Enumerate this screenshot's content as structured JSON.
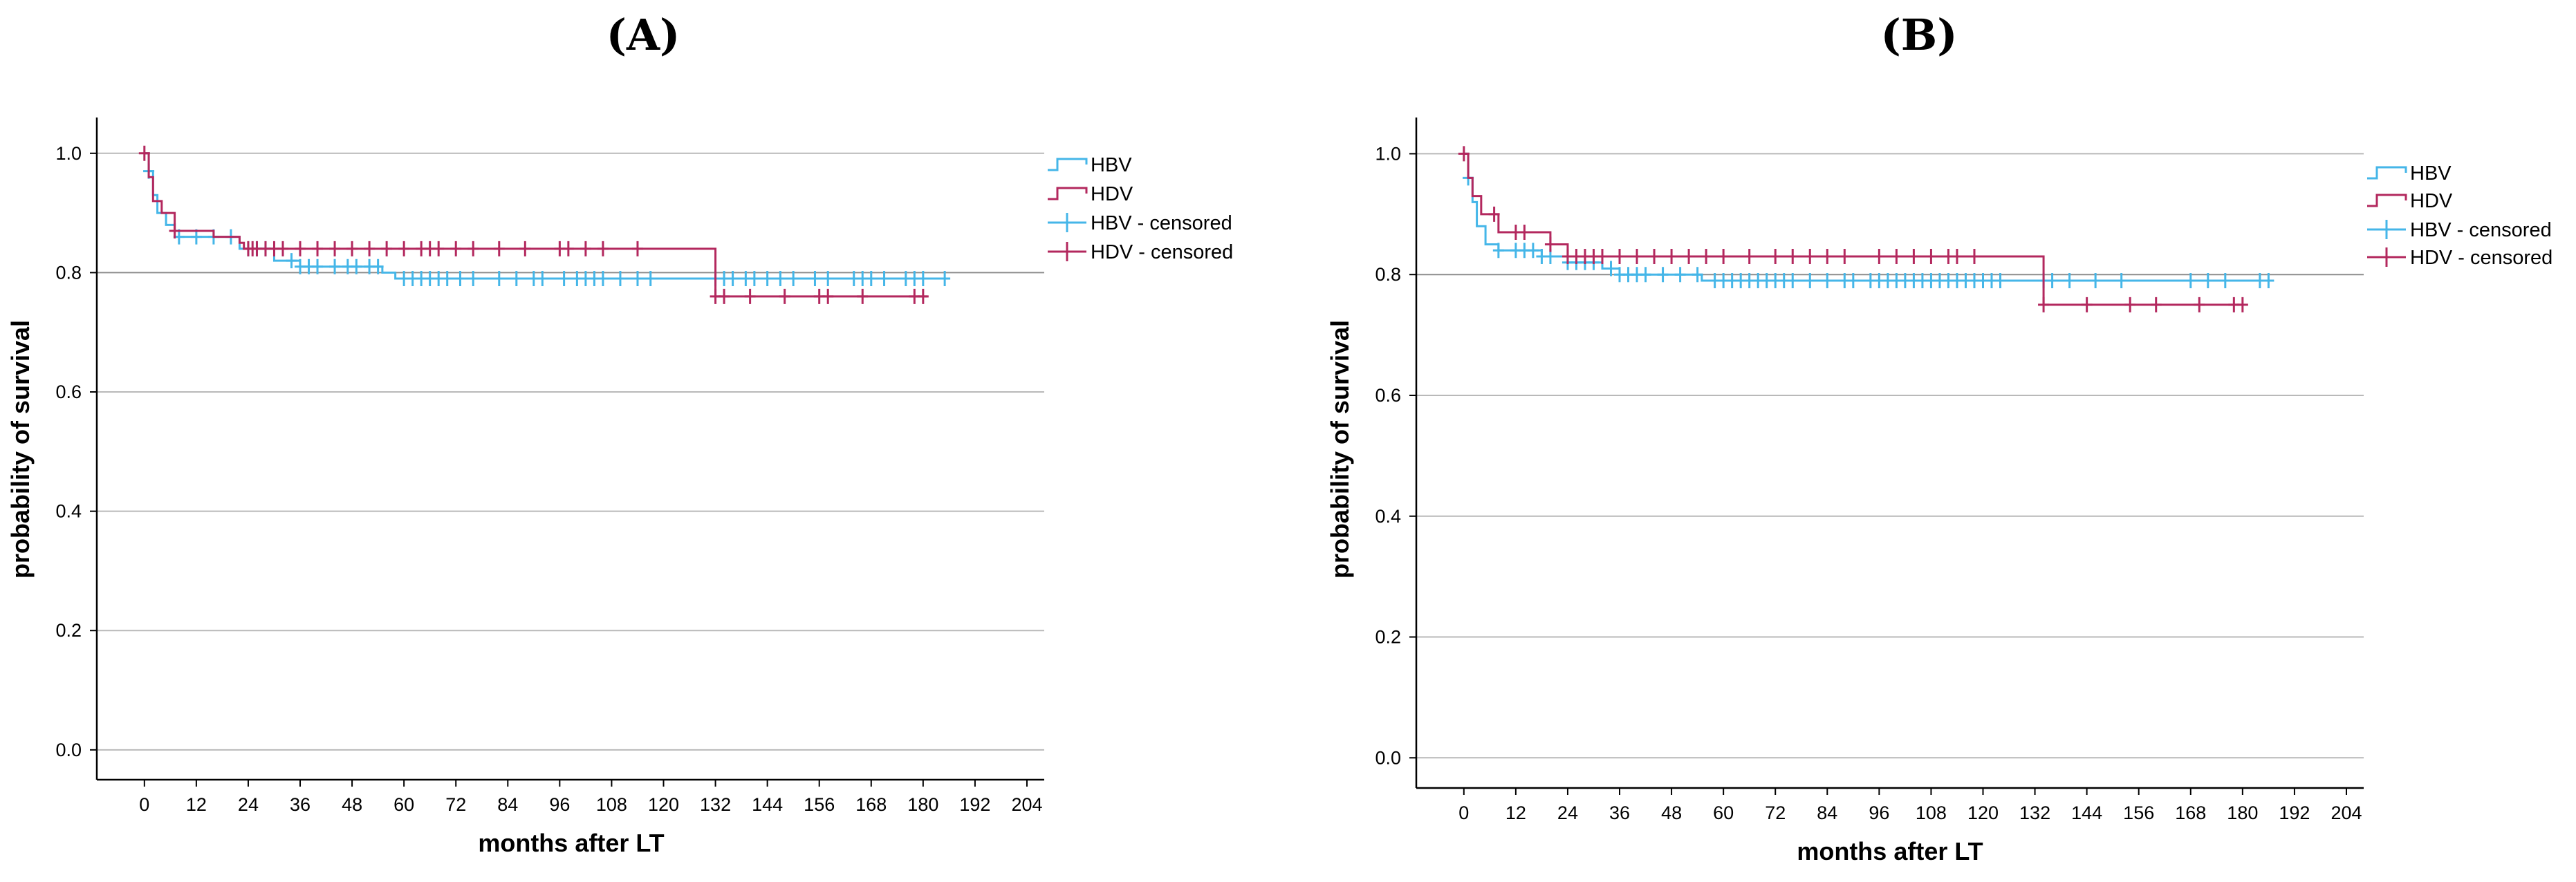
{
  "figure": {
    "panels": [
      "(A)",
      "(B)"
    ]
  },
  "chart_data": [
    {
      "panel": "(A)",
      "type": "line",
      "subtype": "kaplan-meier",
      "title": "(A)",
      "xlabel": "months after LT",
      "ylabel": "probability of survival",
      "xticks": [
        0,
        12,
        24,
        36,
        48,
        60,
        72,
        84,
        96,
        108,
        120,
        132,
        144,
        156,
        168,
        180,
        192,
        204
      ],
      "yticks": [
        0.0,
        0.2,
        0.4,
        0.6,
        0.8,
        1.0
      ],
      "ytick_labels": [
        "0.0",
        "0.2",
        "0.4",
        "0.6",
        "0.8",
        "1.0"
      ],
      "xlim": [
        -11,
        208
      ],
      "ylim": [
        -0.05,
        1.06
      ],
      "grid": "horizontal",
      "legend": [
        "HBV",
        "HDV",
        "HBV - censored",
        "HDV - censored"
      ],
      "legend_position": "right",
      "series": [
        {
          "name": "HBV",
          "color": "#45b6e8",
          "steps": [
            [
              0,
              1.0
            ],
            [
              1,
              0.97
            ],
            [
              2,
              0.93
            ],
            [
              3,
              0.9
            ],
            [
              5,
              0.88
            ],
            [
              7,
              0.86
            ],
            [
              22,
              0.84
            ],
            [
              30,
              0.82
            ],
            [
              36,
              0.81
            ],
            [
              55,
              0.8
            ],
            [
              58,
              0.79
            ],
            [
              185,
              0.79
            ]
          ],
          "censored": [
            1,
            8,
            12,
            16,
            20,
            24,
            26,
            28,
            34,
            36,
            38,
            40,
            44,
            47,
            49,
            52,
            54,
            60,
            62,
            64,
            66,
            68,
            70,
            73,
            76,
            82,
            86,
            90,
            92,
            97,
            100,
            102,
            104,
            106,
            110,
            114,
            117,
            132,
            134,
            136,
            139,
            141,
            144,
            147,
            150,
            155,
            158,
            164,
            166,
            168,
            171,
            176,
            178,
            180,
            185
          ]
        },
        {
          "name": "HDV",
          "color": "#b3285e",
          "steps": [
            [
              0,
              1.0
            ],
            [
              1,
              0.96
            ],
            [
              2,
              0.92
            ],
            [
              4,
              0.9
            ],
            [
              7,
              0.87
            ],
            [
              16,
              0.86
            ],
            [
              22,
              0.85
            ],
            [
              23,
              0.84
            ],
            [
              131,
              0.84
            ],
            [
              132,
              0.76
            ],
            [
              181,
              0.76
            ]
          ],
          "censored": [
            0,
            7,
            24,
            25,
            26,
            28,
            30,
            32,
            36,
            40,
            44,
            48,
            52,
            56,
            60,
            64,
            66,
            68,
            72,
            76,
            82,
            88,
            96,
            98,
            102,
            106,
            114,
            132,
            134,
            140,
            148,
            156,
            158,
            166,
            178,
            180
          ]
        }
      ]
    },
    {
      "panel": "(B)",
      "type": "line",
      "subtype": "kaplan-meier",
      "title": "(B)",
      "xlabel": "months after LT",
      "ylabel": "probability of survival",
      "xticks": [
        0,
        12,
        24,
        36,
        48,
        60,
        72,
        84,
        96,
        108,
        120,
        132,
        144,
        156,
        168,
        180,
        192,
        204
      ],
      "yticks": [
        0.0,
        0.2,
        0.4,
        0.6,
        0.8,
        1.0
      ],
      "ytick_labels": [
        "0.0",
        "0.2",
        "0.4",
        "0.6",
        "0.8",
        "1.0"
      ],
      "xlim": [
        -11,
        208
      ],
      "ylim": [
        -0.05,
        1.06
      ],
      "grid": "horizontal",
      "legend": [
        "HBV",
        "HDV",
        "HBV - censored",
        "HDV - censored"
      ],
      "legend_position": "right",
      "series": [
        {
          "name": "HBV",
          "color": "#45b6e8",
          "steps": [
            [
              0,
              1.0
            ],
            [
              1,
              0.96
            ],
            [
              2,
              0.92
            ],
            [
              3,
              0.88
            ],
            [
              5,
              0.85
            ],
            [
              8,
              0.84
            ],
            [
              18,
              0.83
            ],
            [
              24,
              0.82
            ],
            [
              32,
              0.81
            ],
            [
              36,
              0.8
            ],
            [
              55,
              0.79
            ],
            [
              186,
              0.79
            ]
          ],
          "censored": [
            1,
            8,
            12,
            14,
            16,
            18,
            20,
            24,
            26,
            28,
            30,
            34,
            36,
            38,
            40,
            42,
            46,
            50,
            54,
            58,
            60,
            62,
            64,
            66,
            68,
            70,
            72,
            74,
            76,
            80,
            84,
            88,
            90,
            94,
            96,
            98,
            100,
            102,
            104,
            106,
            108,
            110,
            112,
            114,
            116,
            118,
            120,
            122,
            124,
            134,
            136,
            140,
            146,
            152,
            168,
            172,
            176,
            184,
            186
          ]
        },
        {
          "name": "HDV",
          "color": "#b3285e",
          "steps": [
            [
              0,
              1.0
            ],
            [
              1,
              0.96
            ],
            [
              2,
              0.93
            ],
            [
              4,
              0.9
            ],
            [
              8,
              0.87
            ],
            [
              20,
              0.85
            ],
            [
              24,
              0.83
            ],
            [
              133,
              0.83
            ],
            [
              134,
              0.75
            ],
            [
              180,
              0.75
            ]
          ],
          "censored": [
            0,
            7,
            12,
            14,
            20,
            24,
            26,
            28,
            30,
            32,
            36,
            40,
            44,
            48,
            52,
            56,
            60,
            66,
            72,
            76,
            80,
            84,
            88,
            96,
            100,
            104,
            108,
            112,
            114,
            118,
            134,
            144,
            154,
            160,
            170,
            178,
            180
          ]
        }
      ]
    }
  ]
}
